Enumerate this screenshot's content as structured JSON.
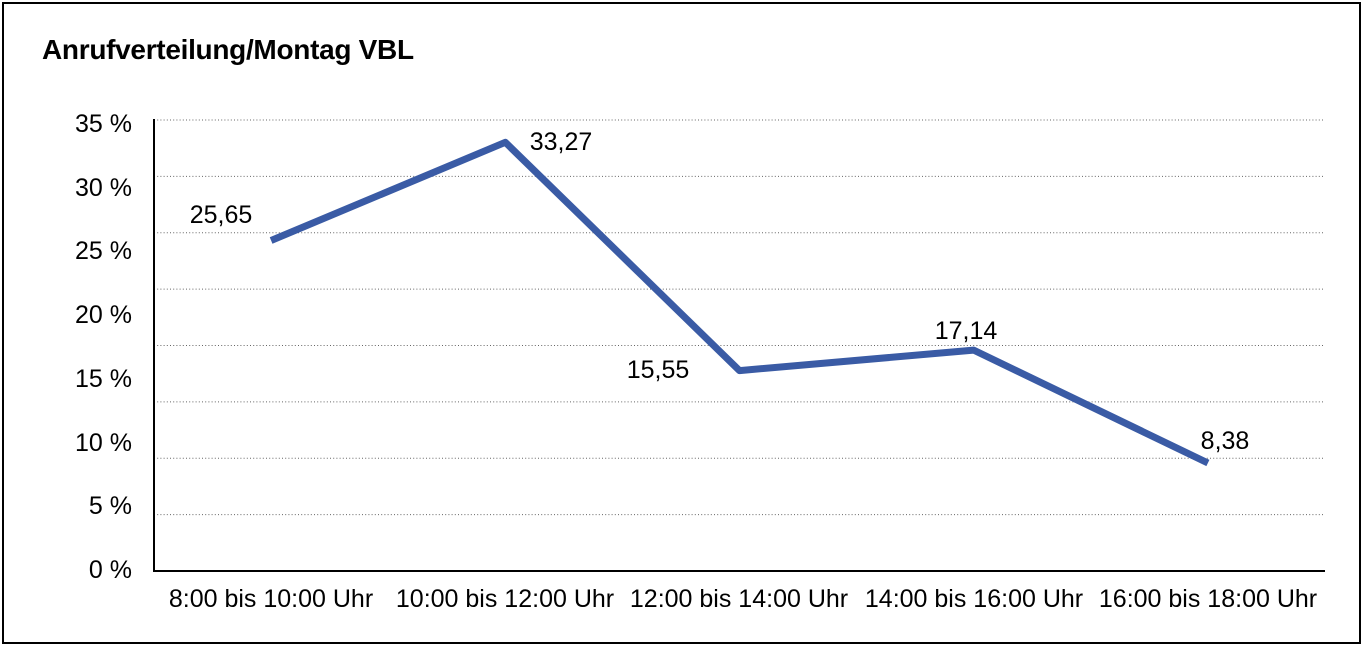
{
  "chart_data": {
    "type": "line",
    "title": "Anrufverteilung/Montag VBL",
    "categories": [
      "8:00 bis 10:00 Uhr",
      "10:00 bis 12:00 Uhr",
      "12:00 bis 14:00 Uhr",
      "14:00 bis 16:00 Uhr",
      "16:00 bis 18:00 Uhr"
    ],
    "values": [
      25.65,
      33.27,
      15.55,
      17.14,
      8.38
    ],
    "value_labels": [
      "25,65",
      "33,27",
      "15,55",
      "17,14",
      "8,38"
    ],
    "ytick_labels": [
      "35 %",
      "30 %",
      "25 %",
      "20 %",
      "15 %",
      "10 %",
      "5 %",
      "0 %"
    ],
    "ylim": [
      0,
      35
    ],
    "xlabel": "",
    "ylabel": "",
    "legend": "none",
    "grid": "horizontal-dotted",
    "line_color": "#3a5ba5",
    "gridline_color": "#666666",
    "axis_color": "#000000",
    "text_color": "#000000",
    "background_color": "#ffffff"
  }
}
